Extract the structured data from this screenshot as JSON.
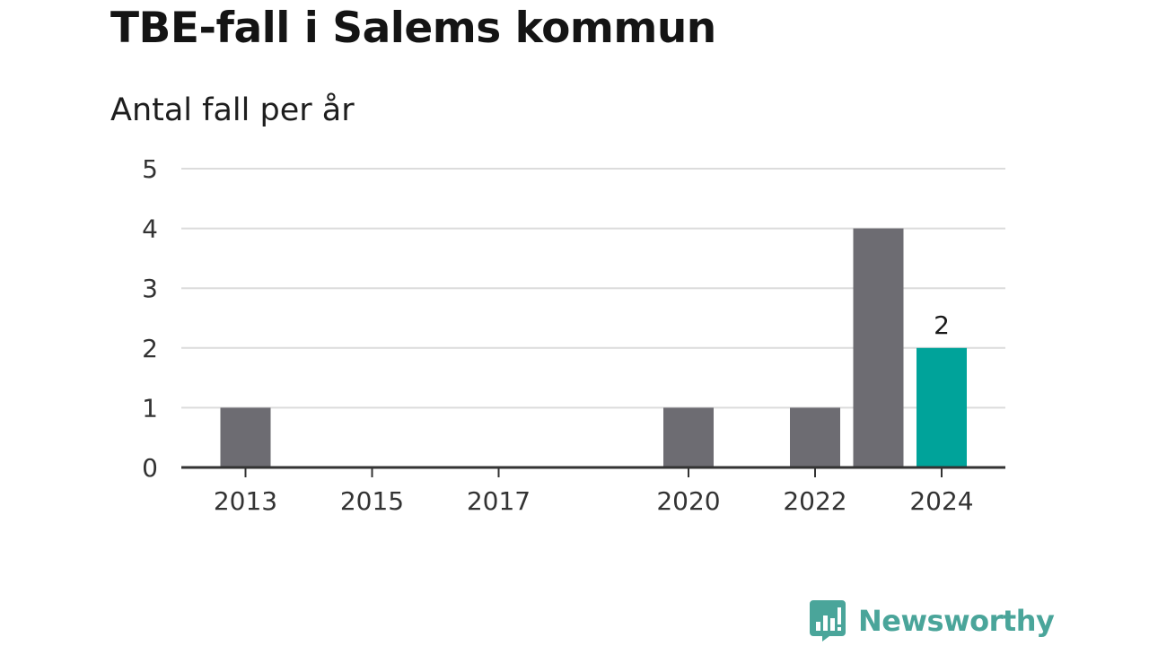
{
  "header": {
    "title": "TBE-fall i Salems kommun",
    "subtitle": "Antal fall per år"
  },
  "chart_data": {
    "type": "bar",
    "title": "TBE-fall i Salems kommun",
    "subtitle": "Antal fall per år",
    "xlabel": "",
    "ylabel": "",
    "categories": [
      "2013",
      "2014",
      "2015",
      "2016",
      "2017",
      "2018",
      "2019",
      "2020",
      "2021",
      "2022",
      "2023",
      "2024"
    ],
    "values": [
      1,
      0,
      0,
      0,
      0,
      0,
      0,
      1,
      0,
      1,
      4,
      2
    ],
    "xtick_labels": [
      "2013",
      "2015",
      "2017",
      "2020",
      "2022",
      "2024"
    ],
    "ylim": [
      0,
      5
    ],
    "yticks": [
      0,
      1,
      2,
      3,
      4,
      5
    ],
    "grid": "horizontal",
    "highlight": {
      "category": "2024",
      "label": "2"
    },
    "colors": {
      "bar": "#6d6c72",
      "highlight": "#00a39a",
      "grid": "#dcdcdc",
      "axis": "#333333"
    }
  },
  "footer": {
    "brand": "Newsworthy",
    "logo_icon": "newsworthy-chart-bubble-icon",
    "brand_color": "#4aa59a"
  }
}
